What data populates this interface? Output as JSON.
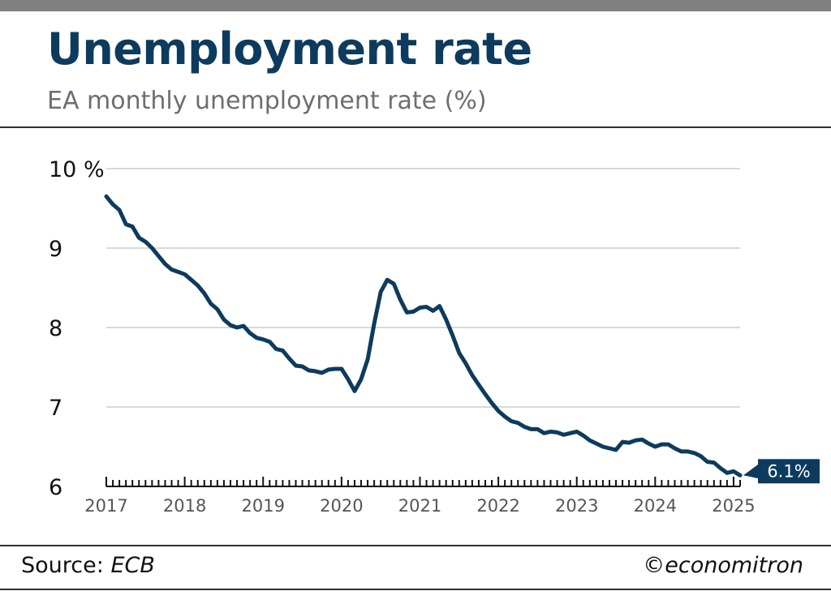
{
  "header": {
    "title": "Unemployment rate",
    "subtitle": "EA monthly unemployment rate (%)"
  },
  "footer": {
    "source_label": "Source:",
    "source_name": "ECB",
    "brand": "©economitron"
  },
  "colors": {
    "line": "#0d3b5e",
    "gridline": "#d9d9d9",
    "title": "#0d3b5e",
    "label_bg": "#0d3b5e"
  },
  "chart_data": {
    "type": "line",
    "title": "Unemployment rate",
    "subtitle": "EA monthly unemployment rate (%)",
    "xlabel": "",
    "ylabel": "",
    "ylim": [
      6,
      10
    ],
    "yticks": [
      {
        "value": 10,
        "label": "10 %"
      },
      {
        "value": 9,
        "label": "9"
      },
      {
        "value": 8,
        "label": "8"
      },
      {
        "value": 7,
        "label": "7"
      },
      {
        "value": 6,
        "label": "6"
      }
    ],
    "xlim": [
      "2017-01",
      "2025-02"
    ],
    "xticks": [
      "2017",
      "2018",
      "2019",
      "2020",
      "2021",
      "2022",
      "2023",
      "2024",
      "2025"
    ],
    "grid": true,
    "last_value_label": "6.1%",
    "series": [
      {
        "x": [
          "2017-01",
          "2017-02",
          "2017-03",
          "2017-04",
          "2017-05",
          "2017-06",
          "2017-07",
          "2017-08",
          "2017-09",
          "2017-10",
          "2017-11",
          "2017-12",
          "2018-01",
          "2018-02",
          "2018-03",
          "2018-04",
          "2018-05",
          "2018-06",
          "2018-07",
          "2018-08",
          "2018-09",
          "2018-10",
          "2018-11",
          "2018-12",
          "2019-01",
          "2019-02",
          "2019-03",
          "2019-04",
          "2019-05",
          "2019-06",
          "2019-07",
          "2019-08",
          "2019-09",
          "2019-10",
          "2019-11",
          "2019-12",
          "2020-01",
          "2020-02",
          "2020-03",
          "2020-04",
          "2020-05",
          "2020-06",
          "2020-07",
          "2020-08",
          "2020-09",
          "2020-10",
          "2020-11",
          "2020-12",
          "2021-01",
          "2021-02",
          "2021-03",
          "2021-04",
          "2021-05",
          "2021-06",
          "2021-07",
          "2021-08",
          "2021-09",
          "2021-10",
          "2021-11",
          "2021-12",
          "2022-01",
          "2022-02",
          "2022-03",
          "2022-04",
          "2022-05",
          "2022-06",
          "2022-07",
          "2022-08",
          "2022-09",
          "2022-10",
          "2022-11",
          "2022-12",
          "2023-01",
          "2023-02",
          "2023-03",
          "2023-04",
          "2023-05",
          "2023-06",
          "2023-07",
          "2023-08",
          "2023-09",
          "2023-10",
          "2023-11",
          "2023-12",
          "2024-01",
          "2024-02",
          "2024-03",
          "2024-04",
          "2024-05",
          "2024-06",
          "2024-07",
          "2024-08",
          "2024-09",
          "2024-10",
          "2024-11",
          "2024-12",
          "2025-01",
          "2025-02"
        ],
        "values": [
          9.65,
          9.55,
          9.48,
          9.3,
          9.27,
          9.13,
          9.08,
          9.0,
          8.9,
          8.8,
          8.73,
          8.7,
          8.67,
          8.6,
          8.53,
          8.43,
          8.3,
          8.23,
          8.1,
          8.03,
          8.0,
          8.02,
          7.93,
          7.87,
          7.85,
          7.82,
          7.73,
          7.71,
          7.61,
          7.52,
          7.51,
          7.46,
          7.45,
          7.43,
          7.47,
          7.48,
          7.48,
          7.35,
          7.2,
          7.35,
          7.6,
          8.05,
          8.45,
          8.6,
          8.55,
          8.35,
          8.19,
          8.2,
          8.25,
          8.26,
          8.21,
          8.27,
          8.1,
          7.9,
          7.68,
          7.55,
          7.4,
          7.28,
          7.16,
          7.05,
          6.95,
          6.88,
          6.82,
          6.8,
          6.75,
          6.72,
          6.72,
          6.67,
          6.69,
          6.68,
          6.65,
          6.67,
          6.69,
          6.64,
          6.58,
          6.54,
          6.5,
          6.48,
          6.46,
          6.56,
          6.55,
          6.58,
          6.59,
          6.54,
          6.5,
          6.53,
          6.53,
          6.48,
          6.44,
          6.44,
          6.42,
          6.38,
          6.31,
          6.3,
          6.23,
          6.17,
          6.19,
          6.14
        ]
      }
    ]
  }
}
